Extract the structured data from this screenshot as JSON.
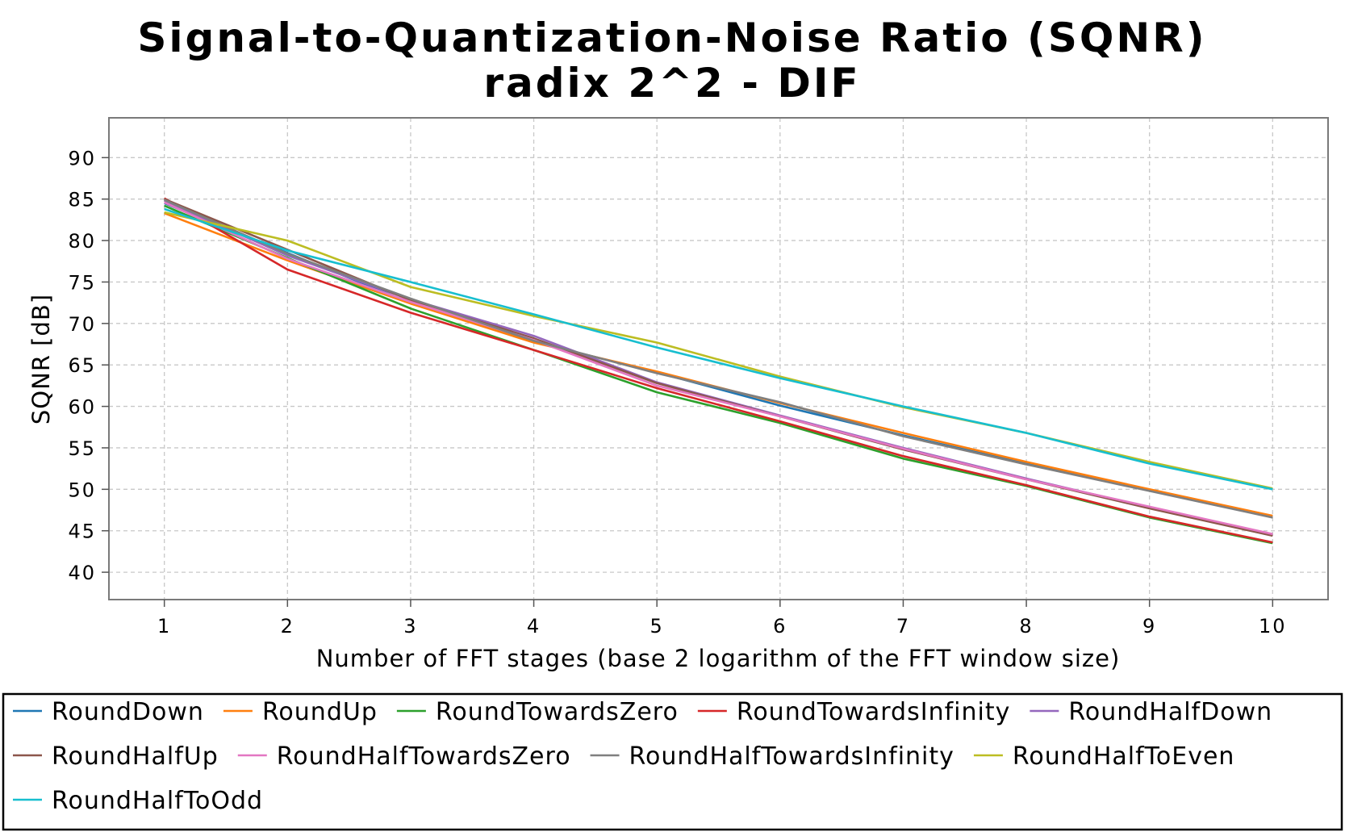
{
  "chart_data": {
    "type": "line",
    "title": "Signal-to-Quantization-Noise Ratio (SQNR)",
    "subtitle": "radix 2^2 - DIF",
    "xlabel": "Number of FFT stages (base 2 logarithm of the FFT window size)",
    "ylabel": "SQNR [dB]",
    "x": [
      1,
      2,
      3,
      4,
      5,
      6,
      7,
      8,
      9,
      10
    ],
    "xticks": [
      "1",
      "2",
      "3",
      "4",
      "5",
      "6",
      "7",
      "8",
      "9",
      "10"
    ],
    "yticks": [
      "40",
      "45",
      "50",
      "55",
      "60",
      "65",
      "70",
      "75",
      "80",
      "85",
      "90"
    ],
    "xlim": [
      0.55,
      10.45
    ],
    "ylim": [
      36.7,
      94.8
    ],
    "grid": true,
    "legend_position": "bottom",
    "series": [
      {
        "name": "RoundDown",
        "color": "#1f77b4",
        "values": [
          84.5,
          78.5,
          72.5,
          67.8,
          64.1,
          60.1,
          56.5,
          53.1,
          49.9,
          46.7
        ]
      },
      {
        "name": "RoundUp",
        "color": "#ff7f0e",
        "values": [
          83.3,
          77.6,
          72.4,
          67.7,
          64.2,
          60.4,
          56.8,
          53.3,
          50.0,
          46.8
        ]
      },
      {
        "name": "RoundTowardsZero",
        "color": "#2ca02c",
        "values": [
          84.2,
          77.9,
          71.8,
          66.8,
          61.7,
          58.0,
          53.7,
          50.4,
          46.6,
          43.5
        ]
      },
      {
        "name": "RoundTowardsInfinity",
        "color": "#d62728",
        "values": [
          85.1,
          76.5,
          71.3,
          66.8,
          62.2,
          58.2,
          54.0,
          50.5,
          46.7,
          43.6
        ]
      },
      {
        "name": "RoundHalfDown",
        "color": "#9467bd",
        "values": [
          84.8,
          78.2,
          72.9,
          68.5,
          62.9,
          58.9,
          55.0,
          51.3,
          47.8,
          44.5
        ]
      },
      {
        "name": "RoundHalfUp",
        "color": "#8c564b",
        "values": [
          85.0,
          78.9,
          72.8,
          68.2,
          62.8,
          58.8,
          54.8,
          51.2,
          47.7,
          44.4
        ]
      },
      {
        "name": "RoundHalfTowardsZero",
        "color": "#e377c2",
        "values": [
          84.6,
          77.8,
          72.6,
          68.0,
          62.5,
          58.8,
          54.9,
          51.2,
          47.9,
          44.6
        ]
      },
      {
        "name": "RoundHalfTowardsInfinity",
        "color": "#7f7f7f",
        "values": [
          84.9,
          78.4,
          73.0,
          67.9,
          64.0,
          60.5,
          56.4,
          53.0,
          49.8,
          46.6
        ]
      },
      {
        "name": "RoundHalfToEven",
        "color": "#bcbd22",
        "values": [
          83.4,
          80.0,
          74.4,
          70.9,
          67.7,
          63.6,
          59.9,
          56.8,
          53.3,
          50.1
        ]
      },
      {
        "name": "RoundHalfToOdd",
        "color": "#17becf",
        "values": [
          83.8,
          78.8,
          75.0,
          71.1,
          67.1,
          63.4,
          60.0,
          56.8,
          53.1,
          50.0
        ]
      }
    ]
  }
}
